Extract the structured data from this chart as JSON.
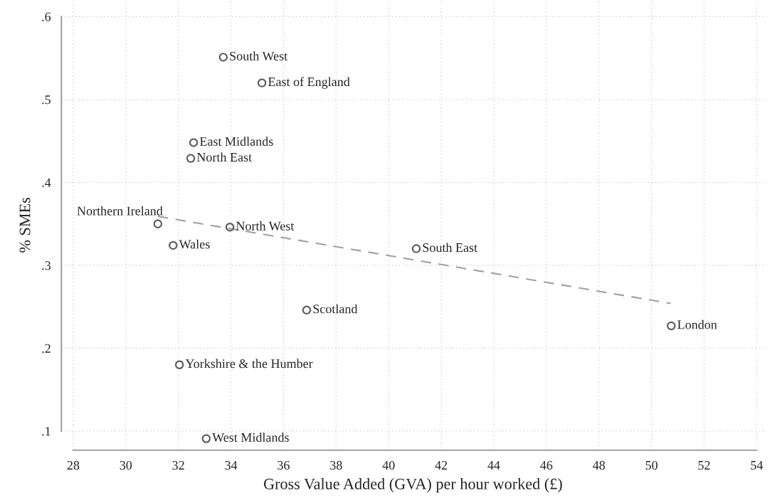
{
  "chart_data": {
    "type": "scatter",
    "xlabel": "Gross Value Added (GVA) per hour worked (£)",
    "ylabel": "% SMEs",
    "xlim": [
      27.55,
      54.3
    ],
    "ylim": [
      0.077,
      0.62
    ],
    "xticks": [
      28,
      30,
      32,
      34,
      36,
      38,
      40,
      42,
      44,
      46,
      48,
      50,
      52,
      54
    ],
    "yticks": [
      {
        "value": 0.1,
        "label": ".1"
      },
      {
        "value": 0.2,
        "label": ".2"
      },
      {
        "value": 0.3,
        "label": ".3"
      },
      {
        "value": 0.4,
        "label": ".4"
      },
      {
        "value": 0.5,
        "label": ".5"
      },
      {
        "value": 0.6,
        "label": ".6"
      }
    ],
    "grid": true,
    "legend": false,
    "series": [
      {
        "marker": "circle",
        "color": "#606060",
        "x": [
          33.71,
          35.18,
          32.58,
          32.47,
          31.22,
          33.96,
          31.8,
          32.04,
          33.06,
          41.05,
          36.88,
          50.75
        ],
        "values": [
          0.551,
          0.52,
          0.448,
          0.429,
          0.35,
          0.346,
          0.324,
          0.18,
          0.091,
          0.32,
          0.246,
          0.227
        ]
      },
      {
        "type": "line",
        "line_style": "dashed",
        "marker": "none",
        "color": "#a0a0a0",
        "x": [
          31.22,
          50.73
        ],
        "values": [
          0.359,
          0.254
        ]
      }
    ],
    "annotations": [
      {
        "text": "South West",
        "x": 33.71,
        "y": 0.551
      },
      {
        "text": "East of England",
        "x": 35.18,
        "y": 0.52
      },
      {
        "text": "East Midlands",
        "x": 32.58,
        "y": 0.448
      },
      {
        "text": "North East",
        "x": 32.47,
        "y": 0.429
      },
      {
        "text": "Northern Ireland",
        "x": 31.22,
        "y": 0.35
      },
      {
        "text": "North West",
        "x": 33.96,
        "y": 0.346
      },
      {
        "text": "Wales",
        "x": 31.8,
        "y": 0.324
      },
      {
        "text": "Yorkshire & the Humber",
        "x": 32.04,
        "y": 0.18
      },
      {
        "text": "West Midlands",
        "x": 33.06,
        "y": 0.091
      },
      {
        "text": "South East",
        "x": 41.05,
        "y": 0.32
      },
      {
        "text": "Scotland",
        "x": 36.88,
        "y": 0.246
      },
      {
        "text": "London",
        "x": 50.75,
        "y": 0.227
      }
    ]
  }
}
